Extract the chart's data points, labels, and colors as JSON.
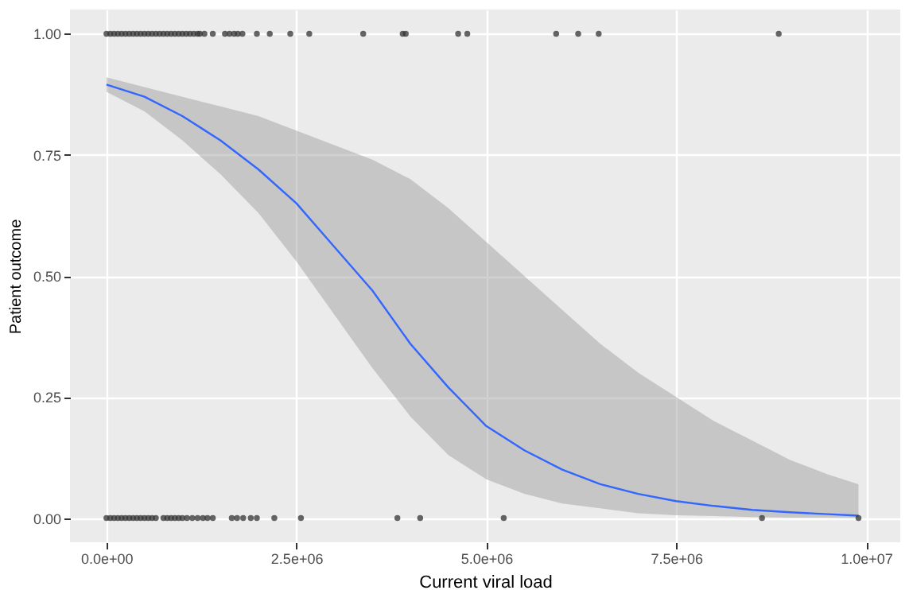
{
  "chart_data": {
    "type": "scatter",
    "xlabel": "Current viral load",
    "ylabel": "Patient outcome",
    "xlim": [
      -480000,
      10450000
    ],
    "ylim": [
      -0.05,
      1.05
    ],
    "xticks": [
      {
        "value": 0,
        "label": "0.0e+00"
      },
      {
        "value": 2500000,
        "label": "2.5e+06"
      },
      {
        "value": 5000000,
        "label": "5.0e+06"
      },
      {
        "value": 7500000,
        "label": "7.5e+06"
      },
      {
        "value": 10000000,
        "label": "1.0e+07"
      }
    ],
    "yticks": [
      {
        "value": 0,
        "label": "0.00"
      },
      {
        "value": 0.25,
        "label": "0.25"
      },
      {
        "value": 0.5,
        "label": "0.50"
      },
      {
        "value": 0.75,
        "label": "0.75"
      },
      {
        "value": 1,
        "label": "1.00"
      }
    ],
    "grid": true,
    "series": [
      {
        "marker": "circle",
        "color": "#333333",
        "x": [
          0,
          50000,
          100000,
          150000,
          200000,
          250000,
          300000,
          350000,
          400000,
          450000,
          500000,
          550000,
          600000,
          650000,
          700000,
          750000,
          800000,
          850000,
          900000,
          950000,
          1000000,
          1050000,
          1100000,
          1150000,
          1200000,
          1230000,
          1290000,
          1400000,
          1560000,
          1620000,
          1680000,
          1730000,
          1790000,
          1980000,
          2150000,
          2420000,
          2670000,
          3380000,
          3900000,
          3940000,
          4630000,
          4750000,
          5920000,
          6210000,
          6480000,
          8850000,
          0,
          50000,
          100000,
          150000,
          200000,
          250000,
          300000,
          350000,
          400000,
          450000,
          500000,
          550000,
          600000,
          650000,
          750000,
          800000,
          850000,
          900000,
          950000,
          1000000,
          1060000,
          1130000,
          1200000,
          1270000,
          1330000,
          1400000,
          1650000,
          1720000,
          1800000,
          1900000,
          1980000,
          2210000,
          2560000,
          3830000,
          4130000,
          5230000,
          8630000,
          9900000
        ],
        "values": [
          1,
          1,
          1,
          1,
          1,
          1,
          1,
          1,
          1,
          1,
          1,
          1,
          1,
          1,
          1,
          1,
          1,
          1,
          1,
          1,
          1,
          1,
          1,
          1,
          1,
          1,
          1,
          1,
          1,
          1,
          1,
          1,
          1,
          1,
          1,
          1,
          1,
          1,
          1,
          1,
          1,
          1,
          1,
          1,
          1,
          1,
          0,
          0,
          0,
          0,
          0,
          0,
          0,
          0,
          0,
          0,
          0,
          0,
          0,
          0,
          0,
          0,
          0,
          0,
          0,
          0,
          0,
          0,
          0,
          0,
          0,
          0,
          0,
          0,
          0,
          0,
          0,
          0,
          0,
          0,
          0,
          0,
          0,
          0
        ]
      },
      {
        "type": "line",
        "color": "#3366ff",
        "x": [
          0,
          500000,
          1000000,
          1500000,
          2000000,
          2500000,
          3000000,
          3500000,
          4000000,
          4500000,
          5000000,
          5500000,
          6000000,
          6500000,
          7000000,
          7500000,
          8000000,
          8500000,
          9000000,
          9500000,
          9900000
        ],
        "values": [
          0.895,
          0.87,
          0.83,
          0.78,
          0.72,
          0.65,
          0.56,
          0.47,
          0.36,
          0.27,
          0.19,
          0.14,
          0.1,
          0.07,
          0.05,
          0.035,
          0.025,
          0.017,
          0.012,
          0.008,
          0.005
        ],
        "lower": [
          0.88,
          0.84,
          0.78,
          0.71,
          0.63,
          0.53,
          0.42,
          0.31,
          0.21,
          0.13,
          0.08,
          0.05,
          0.03,
          0.02,
          0.01,
          0.006,
          0.004,
          0.002,
          0.001,
          0.001,
          0
        ],
        "upper": [
          0.91,
          0.89,
          0.87,
          0.85,
          0.83,
          0.8,
          0.77,
          0.74,
          0.7,
          0.64,
          0.57,
          0.5,
          0.43,
          0.36,
          0.3,
          0.25,
          0.2,
          0.16,
          0.12,
          0.09,
          0.07
        ]
      }
    ]
  }
}
